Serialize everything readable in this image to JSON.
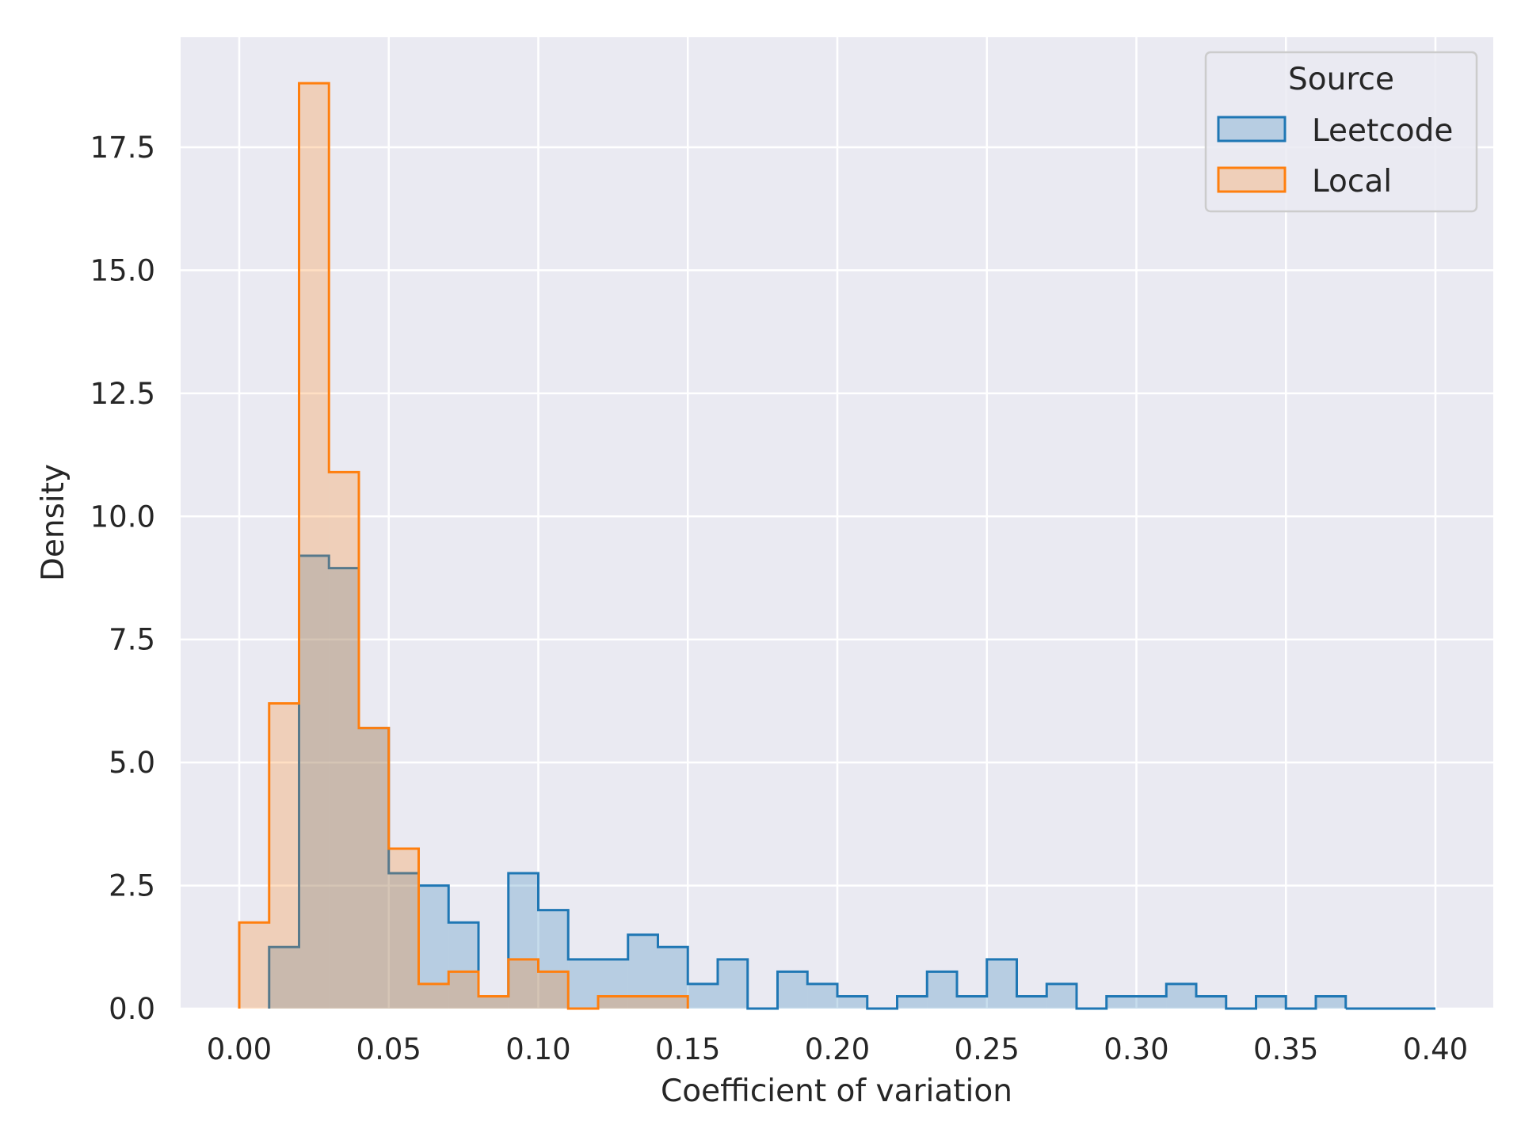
{
  "chart_data": {
    "type": "histogram",
    "xlabel": "Coefficient of variation",
    "ylabel": "Density",
    "xlim": [
      -0.02,
      0.42
    ],
    "ylim": [
      0,
      19.7
    ],
    "xticks": [
      0.0,
      0.05,
      0.1,
      0.15,
      0.2,
      0.25,
      0.3,
      0.35,
      0.4
    ],
    "xtick_labels": [
      "0.00",
      "0.05",
      "0.10",
      "0.15",
      "0.20",
      "0.25",
      "0.30",
      "0.35",
      "0.40"
    ],
    "yticks": [
      0.0,
      2.5,
      5.0,
      7.5,
      10.0,
      12.5,
      15.0,
      17.5
    ],
    "ytick_labels": [
      "0.0",
      "2.5",
      "5.0",
      "7.5",
      "10.0",
      "12.5",
      "15.0",
      "17.5"
    ],
    "bin_edges": [
      0.0,
      0.01,
      0.02,
      0.03,
      0.04,
      0.05,
      0.06,
      0.07,
      0.08,
      0.09,
      0.1,
      0.11,
      0.12,
      0.13,
      0.14,
      0.15,
      0.16,
      0.17,
      0.18,
      0.19,
      0.2,
      0.21,
      0.22,
      0.23,
      0.24,
      0.25,
      0.26,
      0.27,
      0.28,
      0.29,
      0.3,
      0.31,
      0.32,
      0.33,
      0.34,
      0.35,
      0.36,
      0.37,
      0.38,
      0.39,
      0.4
    ],
    "series": [
      {
        "name": "Leetcode",
        "color": "#1f77b4",
        "values": [
          0,
          1.25,
          9.2,
          8.95,
          5.7,
          2.75,
          2.5,
          1.75,
          0.25,
          2.75,
          2.0,
          1.0,
          1.0,
          1.5,
          1.25,
          0.5,
          1.0,
          0,
          0.75,
          0.5,
          0.25,
          0,
          0.25,
          0.75,
          0.25,
          1.0,
          0.25,
          0.5,
          0,
          0.25,
          0.25,
          0.5,
          0.25,
          0,
          0.25,
          0,
          0.25,
          0,
          0,
          0
        ]
      },
      {
        "name": "Local",
        "color": "#ff7f0e",
        "values": [
          1.75,
          6.2,
          18.8,
          10.9,
          5.7,
          3.25,
          0.5,
          0.75,
          0.25,
          1.0,
          0.75,
          0,
          0.25,
          0.25,
          0.25,
          0,
          0,
          0,
          0,
          0,
          0,
          0,
          0,
          0,
          0,
          0,
          0,
          0,
          0,
          0,
          0,
          0,
          0,
          0,
          0,
          0,
          0,
          0,
          0,
          0
        ]
      }
    ],
    "legend": {
      "title": "Source",
      "placement": "top-right"
    },
    "grid": true,
    "colors": {
      "background": "#eaeaf2",
      "grid": "#ffffff"
    }
  }
}
